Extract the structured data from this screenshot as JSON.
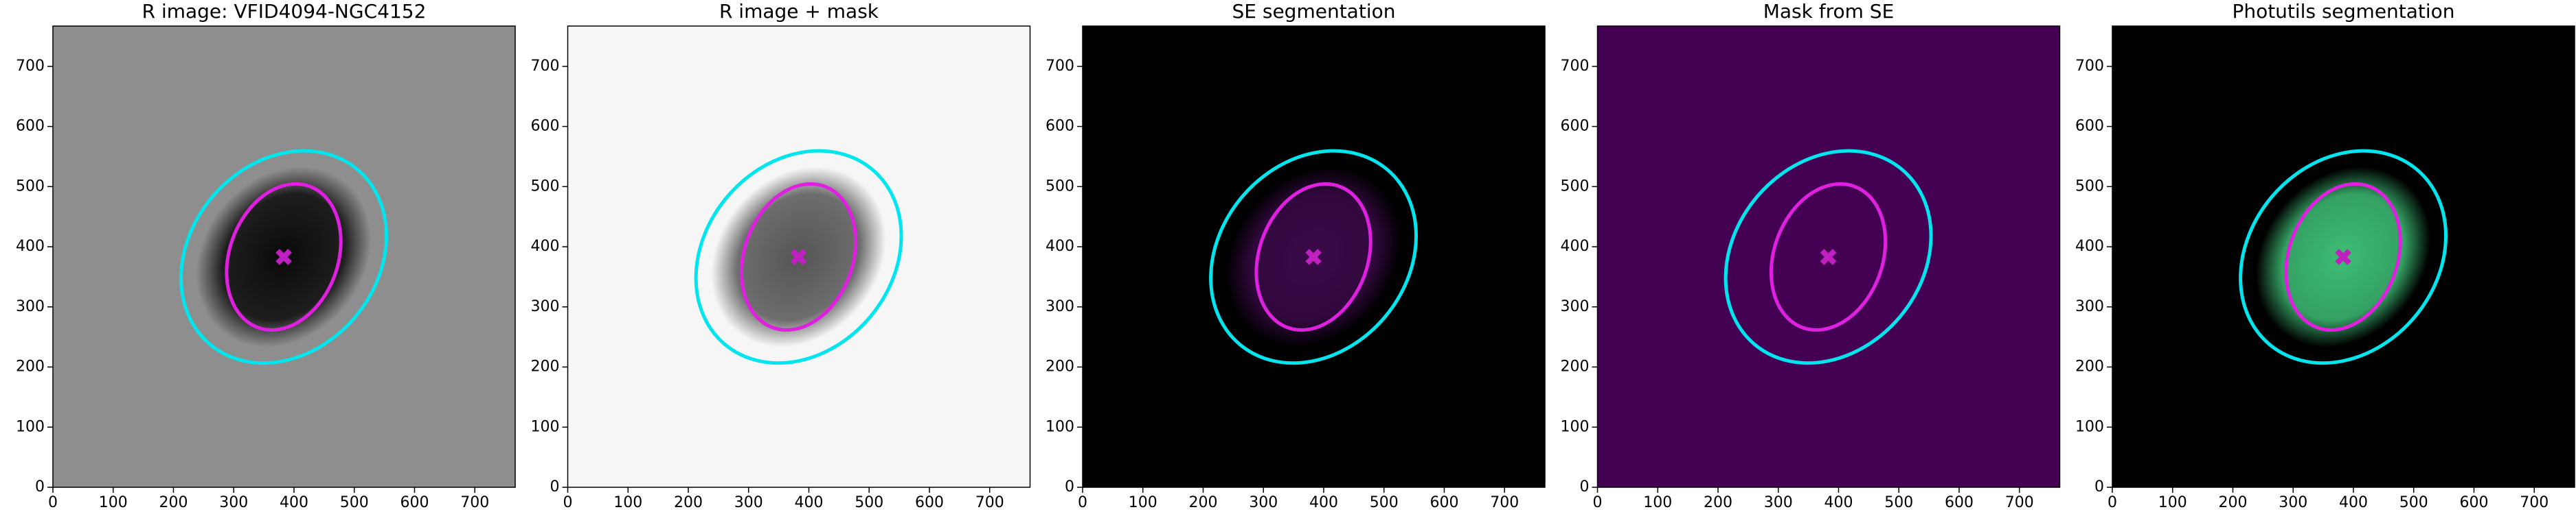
{
  "chart_data": [
    {
      "type": "image",
      "title": "R image: VFID4094-NGC4152",
      "xlim": [
        0,
        767
      ],
      "ylim": [
        0,
        767
      ],
      "xticks": [
        0,
        100,
        200,
        300,
        400,
        500,
        600,
        700
      ],
      "yticks": [
        0,
        100,
        200,
        300,
        400,
        500,
        600,
        700
      ],
      "background": "#8e8e8e",
      "source_color": "#0a0a0a",
      "ellipses": [
        {
          "x": 383,
          "y": 383,
          "a": 190,
          "b": 155,
          "angle": 50,
          "color": "#00e5ee"
        },
        {
          "x": 383,
          "y": 383,
          "a": 125,
          "b": 90,
          "angle": 70,
          "color": "#e020e0"
        }
      ],
      "center": {
        "x": 383,
        "y": 383,
        "color": "#c020c0"
      }
    },
    {
      "type": "image",
      "title": "R image + mask",
      "xlim": [
        0,
        767
      ],
      "ylim": [
        0,
        767
      ],
      "xticks": [
        0,
        100,
        200,
        300,
        400,
        500,
        600,
        700
      ],
      "yticks": [
        0,
        100,
        200,
        300,
        400,
        500,
        600,
        700
      ],
      "background": "#f6f6f6",
      "source_color": "#555555",
      "ellipses": [
        {
          "x": 383,
          "y": 383,
          "a": 190,
          "b": 155,
          "angle": 50,
          "color": "#00e5ee"
        },
        {
          "x": 383,
          "y": 383,
          "a": 125,
          "b": 90,
          "angle": 70,
          "color": "#e020e0"
        }
      ],
      "center": {
        "x": 383,
        "y": 383,
        "color": "#c020c0"
      }
    },
    {
      "type": "image",
      "title": "SE segmentation",
      "xlim": [
        0,
        767
      ],
      "ylim": [
        0,
        767
      ],
      "xticks": [
        0,
        100,
        200,
        300,
        400,
        500,
        600,
        700
      ],
      "yticks": [
        0,
        100,
        200,
        300,
        400,
        500,
        600,
        700
      ],
      "background": "#000000",
      "source_color": "#3b0a4a",
      "ellipses": [
        {
          "x": 383,
          "y": 383,
          "a": 190,
          "b": 155,
          "angle": 50,
          "color": "#00e5ee"
        },
        {
          "x": 383,
          "y": 383,
          "a": 125,
          "b": 90,
          "angle": 70,
          "color": "#e020e0"
        }
      ],
      "center": {
        "x": 383,
        "y": 383,
        "color": "#c020c0"
      }
    },
    {
      "type": "image",
      "title": "Mask from SE",
      "xlim": [
        0,
        767
      ],
      "ylim": [
        0,
        767
      ],
      "xticks": [
        0,
        100,
        200,
        300,
        400,
        500,
        600,
        700
      ],
      "yticks": [
        0,
        100,
        200,
        300,
        400,
        500,
        600,
        700
      ],
      "background": "#440154",
      "ellipses": [
        {
          "x": 383,
          "y": 383,
          "a": 190,
          "b": 155,
          "angle": 50,
          "color": "#00e5ee"
        },
        {
          "x": 383,
          "y": 383,
          "a": 125,
          "b": 90,
          "angle": 70,
          "color": "#e020e0"
        }
      ],
      "center": {
        "x": 383,
        "y": 383,
        "color": "#c020c0"
      }
    },
    {
      "type": "image",
      "title": "Photutils segmentation",
      "xlim": [
        0,
        767
      ],
      "ylim": [
        0,
        767
      ],
      "xticks": [
        0,
        100,
        200,
        300,
        400,
        500,
        600,
        700
      ],
      "yticks": [
        0,
        100,
        200,
        300,
        400,
        500,
        600,
        700
      ],
      "background": "#000000",
      "source_color": "#3dbd74",
      "ellipses": [
        {
          "x": 383,
          "y": 383,
          "a": 190,
          "b": 155,
          "angle": 50,
          "color": "#00e5ee"
        },
        {
          "x": 383,
          "y": 383,
          "a": 125,
          "b": 90,
          "angle": 70,
          "color": "#e020e0"
        }
      ],
      "center": {
        "x": 383,
        "y": 383,
        "color": "#c020c0"
      }
    }
  ]
}
